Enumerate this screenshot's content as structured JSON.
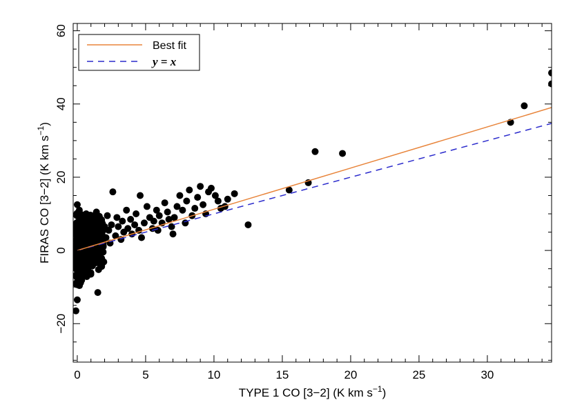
{
  "chart_data": {
    "type": "scatter",
    "xlabel": "TYPE 1 CO [3−2] (K km s",
    "xlabel_sup": "−1",
    "xlabel_close": ")",
    "ylabel": "FIRAS CO [3−2] (K km s",
    "ylabel_sup": "−1",
    "ylabel_close": ")",
    "xlim": [
      -0.3,
      34.7
    ],
    "ylim": [
      -30.5,
      62
    ],
    "x_ticks": [
      0,
      5,
      10,
      15,
      20,
      25,
      30
    ],
    "y_ticks": [
      -20,
      0,
      20,
      40,
      60
    ],
    "x_tick_labels": [
      "0",
      "5",
      "10",
      "15",
      "20",
      "25",
      "30"
    ],
    "y_tick_labels": [
      "−20",
      "0",
      "20",
      "40",
      "60"
    ],
    "legend": {
      "placement": "top-left",
      "entries": [
        {
          "label": "Best fit",
          "color": "#e8843a",
          "style": "solid"
        },
        {
          "label": "y = x",
          "color": "#2a2acc",
          "style": "dashed"
        }
      ]
    },
    "best_fit": {
      "slope": 1.125,
      "intercept": 0,
      "color": "#e8843a"
    },
    "identity_line": {
      "slope": 1.0,
      "intercept": 0,
      "color": "#2a2acc"
    },
    "marker_color": "#000000",
    "points": [
      [
        34.7,
        48.5
      ],
      [
        34.7,
        45.5
      ],
      [
        32.7,
        39.5
      ],
      [
        31.7,
        35.0
      ],
      [
        19.4,
        26.5
      ],
      [
        17.4,
        27.0
      ],
      [
        16.9,
        18.5
      ],
      [
        15.5,
        16.5
      ],
      [
        12.5,
        7.0
      ],
      [
        11.5,
        15.5
      ],
      [
        11.0,
        14.0
      ],
      [
        10.8,
        12.0
      ],
      [
        10.5,
        11.5
      ],
      [
        10.3,
        13.5
      ],
      [
        10.1,
        15.0
      ],
      [
        9.8,
        17.0
      ],
      [
        9.6,
        16.0
      ],
      [
        9.4,
        10.0
      ],
      [
        9.2,
        12.5
      ],
      [
        9.0,
        17.5
      ],
      [
        8.8,
        14.5
      ],
      [
        8.6,
        11.5
      ],
      [
        8.4,
        9.5
      ],
      [
        8.2,
        16.5
      ],
      [
        8.0,
        13.5
      ],
      [
        7.9,
        7.5
      ],
      [
        7.7,
        11.0
      ],
      [
        7.5,
        15.0
      ],
      [
        7.3,
        12.0
      ],
      [
        7.1,
        9.0
      ],
      [
        7.0,
        4.5
      ],
      [
        6.9,
        6.5
      ],
      [
        6.7,
        8.5
      ],
      [
        6.6,
        10.5
      ],
      [
        6.4,
        13.0
      ],
      [
        6.2,
        7.5
      ],
      [
        6.0,
        9.5
      ],
      [
        5.9,
        5.5
      ],
      [
        5.8,
        11.0
      ],
      [
        5.6,
        8.0
      ],
      [
        5.5,
        6.0
      ],
      [
        5.3,
        9.0
      ],
      [
        5.1,
        12.0
      ],
      [
        4.9,
        7.5
      ],
      [
        4.7,
        3.5
      ],
      [
        4.6,
        15.0
      ],
      [
        4.5,
        5.5
      ],
      [
        4.3,
        10.0
      ],
      [
        4.2,
        7.0
      ],
      [
        4.0,
        4.5
      ],
      [
        3.9,
        8.5
      ],
      [
        3.7,
        6.0
      ],
      [
        3.6,
        11.0
      ],
      [
        3.4,
        5.0
      ],
      [
        3.3,
        8.0
      ],
      [
        3.2,
        3.0
      ],
      [
        3.0,
        6.5
      ],
      [
        2.9,
        9.0
      ],
      [
        2.8,
        4.0
      ],
      [
        2.6,
        16.0
      ],
      [
        2.5,
        7.0
      ],
      [
        2.4,
        2.0
      ],
      [
        2.3,
        5.5
      ],
      [
        2.2,
        9.5
      ],
      [
        2.1,
        3.5
      ],
      [
        2.0,
        6.5
      ],
      [
        1.9,
        1.0
      ],
      [
        1.8,
        4.5
      ],
      [
        1.7,
        7.5
      ],
      [
        1.6,
        2.5
      ],
      [
        1.5,
        -11.5
      ],
      [
        1.5,
        5.0
      ],
      [
        1.4,
        10.5
      ],
      [
        1.3,
        3.0
      ],
      [
        1.2,
        6.0
      ],
      [
        1.1,
        -1.0
      ],
      [
        1.0,
        4.0
      ],
      [
        0.9,
        8.0
      ],
      [
        0.8,
        2.0
      ],
      [
        0.7,
        5.5
      ],
      [
        0.6,
        -2.5
      ],
      [
        0.5,
        3.5
      ],
      [
        0.4,
        9.0
      ],
      [
        0.3,
        1.0
      ],
      [
        0.2,
        -5.0
      ],
      [
        0.1,
        6.5
      ],
      [
        0.0,
        12.5
      ],
      [
        0.0,
        -13.5
      ],
      [
        -0.1,
        -16.5
      ],
      [
        0.05,
        -9.0
      ],
      [
        0.15,
        11.0
      ],
      [
        0.25,
        -7.0
      ],
      [
        0.35,
        7.0
      ],
      [
        0.45,
        -3.5
      ],
      [
        0.55,
        0.5
      ],
      [
        0.65,
        10.0
      ],
      [
        0.75,
        -1.5
      ],
      [
        0.85,
        4.5
      ],
      [
        0.95,
        1.5
      ],
      [
        1.05,
        7.0
      ]
    ]
  }
}
